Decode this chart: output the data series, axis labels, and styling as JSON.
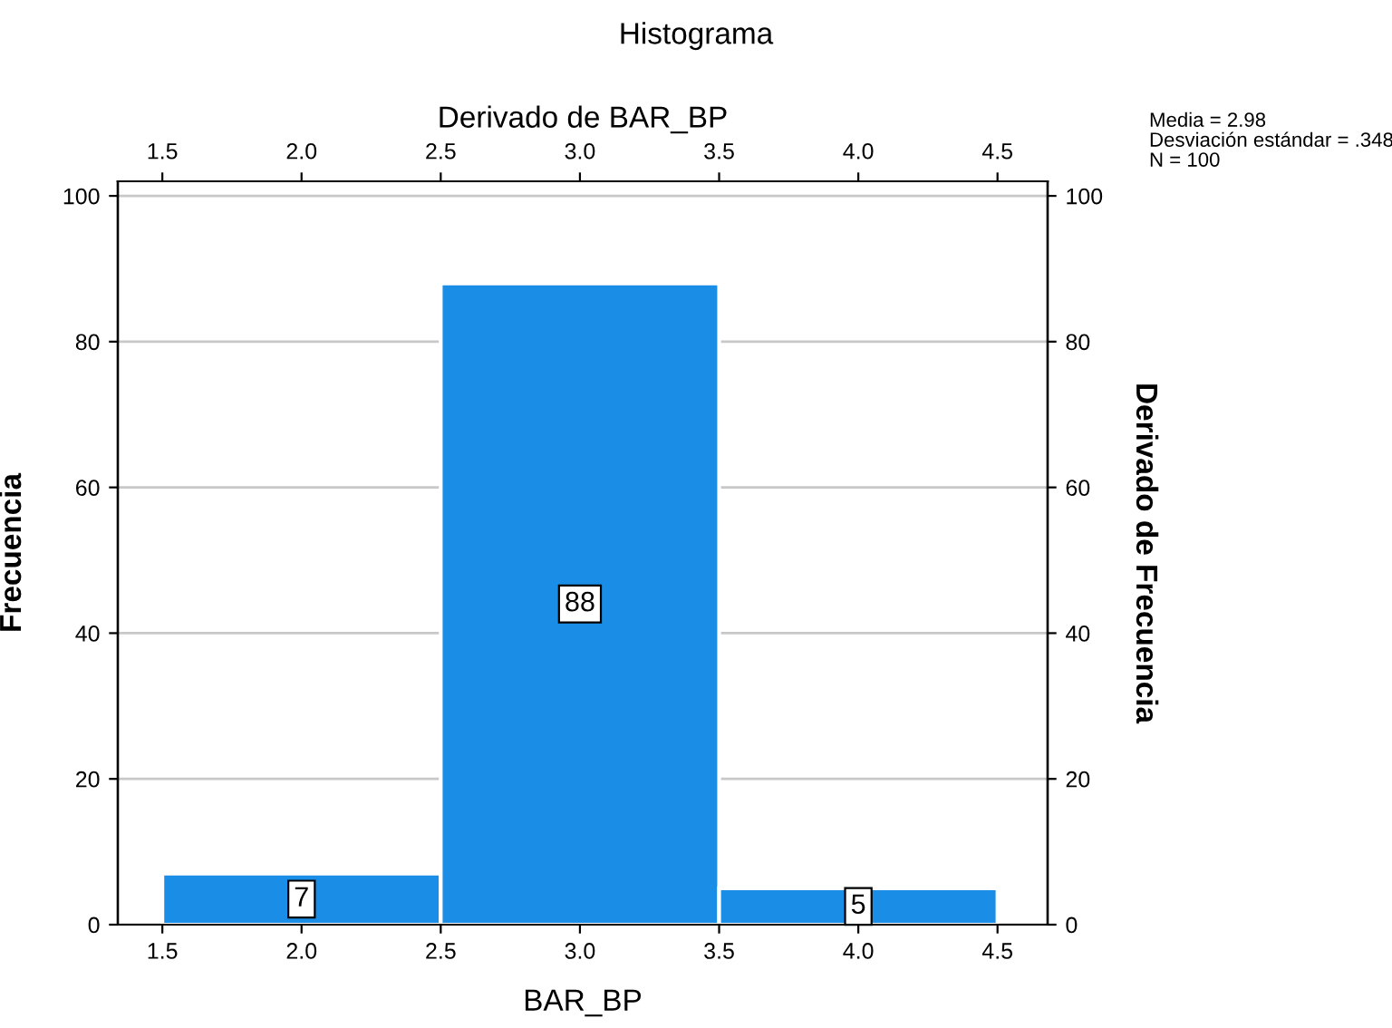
{
  "chart_data": {
    "type": "histogram",
    "title": "Histograma",
    "xlabel": "BAR_BP",
    "ylabel": "Frecuencia",
    "x2label": "Derivado de BAR_BP",
    "y2label": "Derivado de Frecuencia",
    "bins": [
      1.5,
      2.5,
      3.5,
      4.5
    ],
    "values": [
      7,
      88,
      5
    ],
    "color": "#1a8ee6",
    "xlim": [
      1.34,
      4.68
    ],
    "xticks": [
      1.5,
      {
        "value": 2,
        "label": "2.0"
      },
      2.5,
      {
        "value": 3,
        "label": "3.0"
      },
      3.5,
      {
        "value": 4,
        "label": "4.0"
      },
      4.5
    ],
    "x2lim": [
      1.34,
      4.68
    ],
    "x2ticks": [
      1.5,
      {
        "value": 2,
        "label": "2.0"
      },
      2.5,
      {
        "value": 3,
        "label": "3.0"
      },
      3.5,
      {
        "value": 4,
        "label": "4.0"
      },
      4.5
    ],
    "ylim": [
      0,
      102
    ],
    "yticks": [
      0,
      20,
      40,
      60,
      80,
      100
    ],
    "y2lim": [
      0,
      102
    ],
    "y2ticks": [
      0,
      20,
      40,
      60,
      80,
      100
    ],
    "grid": "y",
    "data_labels": true,
    "annotations": [
      "Media = 2.98",
      "Desviación estándar = .348",
      "N = 100"
    ]
  }
}
